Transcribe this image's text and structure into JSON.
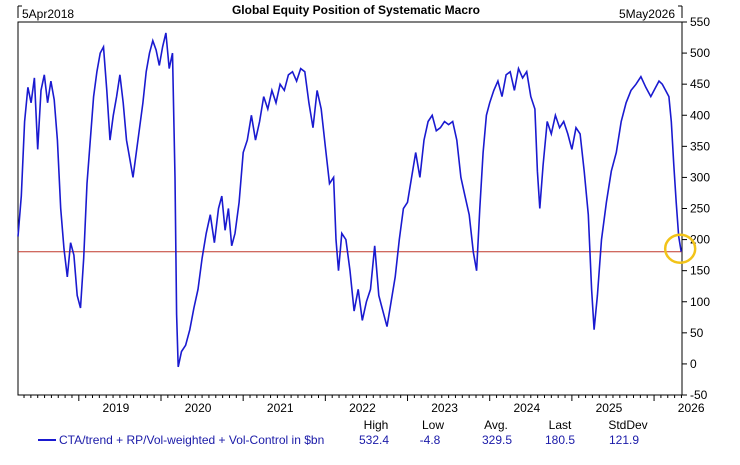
{
  "chart_data": {
    "type": "line",
    "title": "Global Equity Position of Systematic Macro",
    "start_date": "5Apr2018",
    "end_date": "5May2026",
    "ylim": [
      -50,
      550
    ],
    "yticks": [
      -50,
      0,
      50,
      100,
      150,
      200,
      250,
      300,
      350,
      400,
      450,
      500,
      550
    ],
    "xlim": [
      2018.26,
      2026.34
    ],
    "xticks": [
      {
        "label": "2019",
        "x": 2019.0
      },
      {
        "label": "2020",
        "x": 2020.0
      },
      {
        "label": "2021",
        "x": 2021.0
      },
      {
        "label": "2022",
        "x": 2022.0
      },
      {
        "label": "2023",
        "x": 2023.0
      },
      {
        "label": "2024",
        "x": 2024.0
      },
      {
        "label": "2025",
        "x": 2025.0
      },
      {
        "label": "2026",
        "x": 2026.0
      }
    ],
    "reference_line": {
      "value": 180.5,
      "color": "#c0392b"
    },
    "highlight_point": {
      "x": 2026.33,
      "y": 180.5,
      "color": "#f2c318"
    },
    "series": [
      {
        "name": "CTA/trend + RP/Vol-weighted + Vol-Control in $bn",
        "color": "#1a1ad0",
        "points": [
          [
            2018.26,
            205
          ],
          [
            2018.3,
            270
          ],
          [
            2018.34,
            390
          ],
          [
            2018.38,
            445
          ],
          [
            2018.42,
            420
          ],
          [
            2018.46,
            460
          ],
          [
            2018.5,
            345
          ],
          [
            2018.54,
            440
          ],
          [
            2018.58,
            465
          ],
          [
            2018.62,
            420
          ],
          [
            2018.66,
            455
          ],
          [
            2018.7,
            425
          ],
          [
            2018.74,
            360
          ],
          [
            2018.78,
            250
          ],
          [
            2018.82,
            185
          ],
          [
            2018.86,
            140
          ],
          [
            2018.9,
            195
          ],
          [
            2018.94,
            175
          ],
          [
            2018.98,
            110
          ],
          [
            2019.02,
            90
          ],
          [
            2019.06,
            170
          ],
          [
            2019.1,
            290
          ],
          [
            2019.14,
            360
          ],
          [
            2019.18,
            430
          ],
          [
            2019.22,
            470
          ],
          [
            2019.26,
            500
          ],
          [
            2019.3,
            510
          ],
          [
            2019.34,
            440
          ],
          [
            2019.38,
            360
          ],
          [
            2019.42,
            400
          ],
          [
            2019.46,
            430
          ],
          [
            2019.5,
            465
          ],
          [
            2019.54,
            420
          ],
          [
            2019.58,
            360
          ],
          [
            2019.62,
            330
          ],
          [
            2019.66,
            300
          ],
          [
            2019.7,
            340
          ],
          [
            2019.74,
            380
          ],
          [
            2019.78,
            420
          ],
          [
            2019.82,
            470
          ],
          [
            2019.86,
            500
          ],
          [
            2019.9,
            520
          ],
          [
            2019.94,
            505
          ],
          [
            2019.98,
            480
          ],
          [
            2020.02,
            510
          ],
          [
            2020.06,
            532.4
          ],
          [
            2020.1,
            475
          ],
          [
            2020.14,
            500
          ],
          [
            2020.17,
            300
          ],
          [
            2020.19,
            80
          ],
          [
            2020.21,
            -4.8
          ],
          [
            2020.25,
            20
          ],
          [
            2020.3,
            30
          ],
          [
            2020.35,
            55
          ],
          [
            2020.4,
            90
          ],
          [
            2020.45,
            120
          ],
          [
            2020.5,
            170
          ],
          [
            2020.55,
            210
          ],
          [
            2020.6,
            240
          ],
          [
            2020.65,
            195
          ],
          [
            2020.7,
            250
          ],
          [
            2020.74,
            270
          ],
          [
            2020.78,
            215
          ],
          [
            2020.82,
            250
          ],
          [
            2020.86,
            190
          ],
          [
            2020.9,
            210
          ],
          [
            2020.95,
            260
          ],
          [
            2021.0,
            340
          ],
          [
            2021.05,
            360
          ],
          [
            2021.1,
            400
          ],
          [
            2021.15,
            360
          ],
          [
            2021.2,
            390
          ],
          [
            2021.25,
            430
          ],
          [
            2021.3,
            410
          ],
          [
            2021.35,
            440
          ],
          [
            2021.4,
            420
          ],
          [
            2021.45,
            450
          ],
          [
            2021.5,
            440
          ],
          [
            2021.55,
            465
          ],
          [
            2021.6,
            470
          ],
          [
            2021.65,
            455
          ],
          [
            2021.7,
            475
          ],
          [
            2021.75,
            470
          ],
          [
            2021.8,
            420
          ],
          [
            2021.85,
            380
          ],
          [
            2021.9,
            440
          ],
          [
            2021.95,
            410
          ],
          [
            2022.0,
            350
          ],
          [
            2022.05,
            290
          ],
          [
            2022.1,
            300
          ],
          [
            2022.13,
            200
          ],
          [
            2022.16,
            150
          ],
          [
            2022.2,
            210
          ],
          [
            2022.25,
            200
          ],
          [
            2022.3,
            150
          ],
          [
            2022.35,
            85
          ],
          [
            2022.4,
            120
          ],
          [
            2022.45,
            70
          ],
          [
            2022.5,
            100
          ],
          [
            2022.55,
            120
          ],
          [
            2022.6,
            190
          ],
          [
            2022.65,
            110
          ],
          [
            2022.7,
            85
          ],
          [
            2022.75,
            60
          ],
          [
            2022.8,
            100
          ],
          [
            2022.85,
            140
          ],
          [
            2022.9,
            200
          ],
          [
            2022.95,
            250
          ],
          [
            2023.0,
            260
          ],
          [
            2023.05,
            300
          ],
          [
            2023.1,
            340
          ],
          [
            2023.15,
            300
          ],
          [
            2023.2,
            360
          ],
          [
            2023.25,
            390
          ],
          [
            2023.3,
            400
          ],
          [
            2023.35,
            375
          ],
          [
            2023.4,
            380
          ],
          [
            2023.45,
            390
          ],
          [
            2023.5,
            385
          ],
          [
            2023.55,
            390
          ],
          [
            2023.6,
            360
          ],
          [
            2023.65,
            300
          ],
          [
            2023.7,
            270
          ],
          [
            2023.75,
            240
          ],
          [
            2023.8,
            180
          ],
          [
            2023.84,
            150
          ],
          [
            2023.88,
            250
          ],
          [
            2023.92,
            340
          ],
          [
            2023.96,
            400
          ],
          [
            2024.0,
            420
          ],
          [
            2024.05,
            440
          ],
          [
            2024.1,
            455
          ],
          [
            2024.15,
            430
          ],
          [
            2024.2,
            465
          ],
          [
            2024.25,
            470
          ],
          [
            2024.3,
            440
          ],
          [
            2024.35,
            475
          ],
          [
            2024.4,
            460
          ],
          [
            2024.45,
            470
          ],
          [
            2024.5,
            430
          ],
          [
            2024.55,
            410
          ],
          [
            2024.58,
            310
          ],
          [
            2024.61,
            250
          ],
          [
            2024.65,
            320
          ],
          [
            2024.7,
            390
          ],
          [
            2024.75,
            370
          ],
          [
            2024.8,
            400
          ],
          [
            2024.85,
            380
          ],
          [
            2024.9,
            390
          ],
          [
            2024.95,
            370
          ],
          [
            2025.0,
            345
          ],
          [
            2025.05,
            380
          ],
          [
            2025.1,
            370
          ],
          [
            2025.15,
            310
          ],
          [
            2025.2,
            240
          ],
          [
            2025.24,
            120
          ],
          [
            2025.27,
            55
          ],
          [
            2025.31,
            110
          ],
          [
            2025.36,
            200
          ],
          [
            2025.42,
            260
          ],
          [
            2025.48,
            310
          ],
          [
            2025.54,
            340
          ],
          [
            2025.6,
            390
          ],
          [
            2025.66,
            420
          ],
          [
            2025.72,
            440
          ],
          [
            2025.78,
            450
          ],
          [
            2025.84,
            462
          ],
          [
            2025.9,
            445
          ],
          [
            2025.96,
            430
          ],
          [
            2026.02,
            445
          ],
          [
            2026.06,
            455
          ],
          [
            2026.1,
            450
          ],
          [
            2026.14,
            440
          ],
          [
            2026.18,
            430
          ],
          [
            2026.21,
            390
          ],
          [
            2026.24,
            320
          ],
          [
            2026.27,
            260
          ],
          [
            2026.3,
            205
          ],
          [
            2026.33,
            180.5
          ]
        ]
      }
    ],
    "stats": {
      "headers": [
        "High",
        "Low",
        "Avg.",
        "Last",
        "StdDev"
      ],
      "values": [
        "532.4",
        "-4.8",
        "329.5",
        "180.5",
        "121.9"
      ]
    }
  }
}
